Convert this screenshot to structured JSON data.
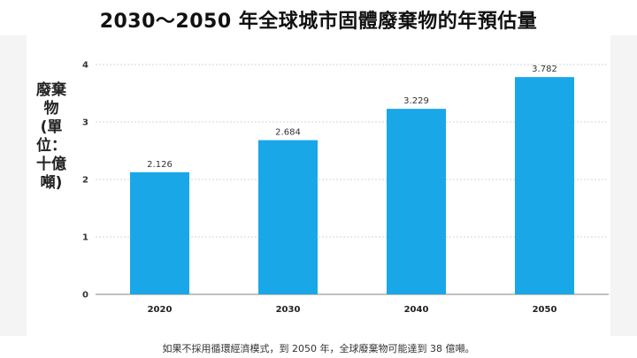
{
  "title": "2030～2050 年全球城市固體廢棄物的年預估量",
  "caption": "如果不採用循環經濟模式，到 2050 年，全球廢棄物可能達到 38 億噸。",
  "colors": {
    "bar": "#1aa7e8",
    "grid": "#d5d5d5",
    "axis": "#9a9a9a"
  },
  "chart_data": {
    "type": "bar",
    "title": "2030～2050 年全球城市固體廢棄物的年預估量",
    "xlabel": "",
    "ylabel": "廢棄物(單位：十億噸)",
    "categories": [
      "2020",
      "2030",
      "2040",
      "2050"
    ],
    "values": [
      2.126,
      2.684,
      3.229,
      3.782
    ],
    "value_labels": [
      "2.126",
      "2.684",
      "3.229",
      "3.782"
    ],
    "ylim": [
      0,
      4
    ],
    "yticks": [
      0,
      1,
      2,
      3,
      4
    ],
    "grid": true,
    "legend": "none"
  }
}
